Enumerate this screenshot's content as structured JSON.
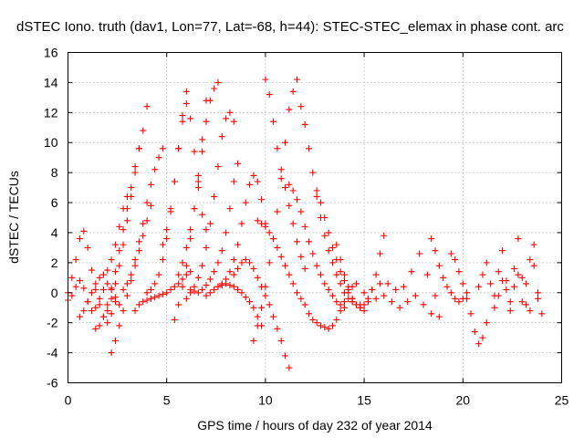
{
  "chart_data": {
    "type": "scatter",
    "title": "dSTEC Iono. truth (dav1, Lon=77, Lat=-68, h=44): STEC-STEC_elemax in phase cont. arc",
    "xlabel": "GPS time / hours of day 232 of year 2014",
    "ylabel": "dSTEC  / TECUs",
    "xlim": [
      0,
      25
    ],
    "ylim": [
      -6,
      16
    ],
    "xticks": [
      0,
      5,
      10,
      15,
      20,
      25
    ],
    "yticks": [
      -6,
      -4,
      -2,
      0,
      2,
      4,
      6,
      8,
      10,
      12,
      14,
      16
    ],
    "grid": true,
    "marker": "plus",
    "color": "#ff0000",
    "series": [
      {
        "x": [
          0.0,
          0.2,
          0.4,
          0.6,
          0.8,
          1.0,
          1.2,
          1.4,
          1.6,
          1.8,
          2.0,
          2.2,
          2.4
        ],
        "y": [
          0.0,
          1.0,
          2.2,
          3.6,
          4.1,
          3.0,
          1.5,
          0.2,
          -0.8,
          -1.6,
          -2.0,
          -1.4,
          -0.6
        ]
      },
      {
        "x": [
          0.0,
          0.2,
          0.4,
          0.6,
          0.8,
          1.0,
          1.2,
          1.4,
          1.6,
          1.8,
          2.0,
          2.2,
          2.4,
          2.6
        ],
        "y": [
          -0.5,
          -0.2,
          0.4,
          0.8,
          0.3,
          -0.6,
          -1.2,
          -1.0,
          -0.4,
          0.2,
          0.6,
          0.3,
          -0.3,
          -0.8
        ]
      },
      {
        "x": [
          0.6,
          0.8,
          1.0,
          1.2,
          1.4,
          1.6,
          1.8,
          2.0,
          2.2,
          2.4,
          2.6,
          2.8,
          3.0
        ],
        "y": [
          -1.6,
          -1.2,
          -0.6,
          0.0,
          0.6,
          1.0,
          1.2,
          1.5,
          2.2,
          3.2,
          4.4,
          5.6,
          6.4
        ]
      },
      {
        "x": [
          1.4,
          1.6,
          1.8,
          2.0,
          2.2,
          2.4,
          2.6,
          2.8,
          3.0,
          3.2,
          3.4,
          3.6
        ],
        "y": [
          -2.4,
          -2.2,
          -1.6,
          -0.8,
          0.2,
          1.4,
          2.8,
          4.2,
          5.6,
          7.0,
          8.4,
          9.6
        ]
      },
      {
        "x": [
          2.0,
          2.2,
          2.4,
          2.6,
          2.8,
          3.0,
          3.2,
          3.4,
          3.6,
          3.8,
          4.0
        ],
        "y": [
          -1.2,
          -0.4,
          0.6,
          1.8,
          3.2,
          4.8,
          6.4,
          8.0,
          9.6,
          10.8,
          12.4
        ]
      },
      {
        "x": [
          2.2,
          2.4,
          2.6,
          2.8,
          3.0,
          3.2,
          3.4,
          3.6,
          3.8,
          4.0,
          4.2
        ],
        "y": [
          -4.0,
          -3.2,
          -2.2,
          -1.2,
          -0.2,
          0.8,
          1.8,
          2.8,
          3.8,
          4.8,
          5.8
        ]
      },
      {
        "x": [
          2.8,
          3.0,
          3.2,
          3.4,
          3.6,
          3.8,
          4.0,
          4.2,
          4.4,
          4.6,
          4.8
        ],
        "y": [
          0.2,
          0.6,
          1.2,
          2.2,
          3.4,
          4.6,
          6.0,
          7.2,
          8.2,
          9.0,
          9.6
        ]
      },
      {
        "x": [
          3.4,
          3.6,
          3.8,
          4.0,
          4.2,
          4.4,
          4.6,
          4.8,
          5.0,
          5.2,
          5.4,
          5.6,
          5.8,
          6.0,
          6.2
        ],
        "y": [
          -1.2,
          -0.8,
          -0.6,
          -0.5,
          -0.4,
          -0.3,
          -0.2,
          -0.1,
          0.0,
          0.2,
          0.4,
          0.6,
          0.9,
          1.2,
          1.4
        ]
      },
      {
        "x": [
          4.0,
          4.2,
          4.4,
          4.6,
          4.8,
          5.0,
          5.2,
          5.4,
          5.6,
          5.8,
          6.0
        ],
        "y": [
          0.0,
          0.2,
          0.6,
          1.2,
          2.2,
          3.6,
          5.4,
          7.4,
          9.6,
          11.8,
          13.4
        ]
      },
      {
        "x": [
          4.8,
          5.0,
          5.2,
          5.4,
          5.6,
          5.8,
          6.0,
          6.2,
          6.4,
          6.6,
          6.8,
          7.0
        ],
        "y": [
          3.2,
          4.2,
          5.6,
          7.4,
          9.6,
          11.4,
          12.6,
          11.6,
          9.4,
          7.0,
          5.2,
          4.2
        ]
      },
      {
        "x": [
          5.4,
          5.6,
          5.8,
          6.0,
          6.2,
          6.4,
          6.6,
          6.8,
          7.0
        ],
        "y": [
          -1.8,
          -0.8,
          0.4,
          1.8,
          3.6,
          5.6,
          7.8,
          10.2,
          12.8
        ]
      },
      {
        "x": [
          5.6,
          5.8,
          6.0,
          6.2,
          6.4,
          6.6,
          6.8,
          7.0,
          7.2,
          7.4,
          7.6
        ],
        "y": [
          1.2,
          2.0,
          3.0,
          4.2,
          5.6,
          7.4,
          9.4,
          11.4,
          12.8,
          13.6,
          14.0
        ]
      },
      {
        "x": [
          6.0,
          6.2,
          6.4,
          6.6,
          6.8,
          7.0,
          7.2,
          7.4,
          7.6,
          7.8,
          8.0,
          8.2,
          8.4
        ],
        "y": [
          -0.4,
          0.0,
          0.4,
          1.0,
          1.8,
          3.0,
          4.6,
          6.4,
          8.4,
          10.4,
          11.6,
          12.0,
          11.4
        ]
      },
      {
        "x": [
          6.2,
          6.4,
          6.6,
          6.8,
          7.0,
          7.2,
          7.4,
          7.6,
          7.8,
          8.0,
          8.2,
          8.4,
          8.6
        ],
        "y": [
          0.2,
          0.1,
          0.0,
          0.2,
          0.5,
          0.9,
          1.4,
          2.0,
          2.8,
          4.0,
          5.6,
          7.4,
          8.6
        ]
      },
      {
        "x": [
          7.6,
          7.8,
          8.0,
          8.2,
          8.4,
          8.6,
          8.8,
          9.0,
          9.2,
          9.4,
          9.6,
          9.8,
          10.0
        ],
        "y": [
          0.4,
          0.6,
          0.9,
          1.4,
          2.2,
          3.2,
          4.6,
          6.0,
          7.2,
          7.8,
          7.4,
          6.2,
          4.6
        ]
      },
      {
        "x": [
          8.4,
          8.6,
          8.8,
          9.0,
          9.2,
          9.4,
          9.6,
          9.8,
          10.0,
          10.2,
          10.4,
          10.6,
          10.8,
          11.0,
          11.2
        ],
        "y": [
          1.2,
          1.6,
          2.0,
          2.2,
          2.0,
          1.6,
          1.0,
          0.4,
          -0.2,
          -0.8,
          -1.6,
          -2.4,
          -3.2,
          -4.2,
          -5.0
        ]
      },
      {
        "x": [
          7.0,
          7.2,
          7.4,
          7.6,
          7.8,
          8.0,
          8.2,
          8.4,
          8.6,
          8.8,
          9.0,
          9.2,
          9.4,
          9.6,
          9.8
        ],
        "y": [
          -0.2,
          0.0,
          0.2,
          0.4,
          0.5,
          0.6,
          0.5,
          0.4,
          0.2,
          0.0,
          -0.3,
          -0.6,
          -1.0,
          -1.6,
          -2.2
        ]
      },
      {
        "x": [
          9.4,
          9.6,
          9.8,
          10.0,
          10.2,
          10.4,
          10.6,
          10.8,
          11.0,
          11.2,
          11.4,
          11.6
        ],
        "y": [
          -3.2,
          -2.2,
          -1.0,
          0.4,
          2.0,
          3.6,
          5.4,
          7.6,
          10.0,
          12.2,
          13.4,
          14.2
        ]
      },
      {
        "x": [
          10.0,
          10.2,
          10.4,
          10.6,
          10.8,
          11.0,
          11.2,
          11.4,
          11.6,
          11.8,
          12.0
        ],
        "y": [
          14.2,
          13.2,
          11.4,
          9.6,
          8.2,
          7.0,
          5.8,
          4.6,
          3.4,
          2.4,
          1.6
        ]
      },
      {
        "x": [
          9.6,
          9.8,
          10.0,
          10.2,
          10.4,
          10.6,
          10.8,
          11.0,
          11.2,
          11.4,
          11.6,
          11.8
        ],
        "y": [
          4.8,
          4.6,
          4.4,
          4.0,
          3.6,
          3.0,
          2.4,
          1.8,
          1.2,
          0.6,
          0.0,
          -0.4
        ]
      },
      {
        "x": [
          11.2,
          11.4,
          11.6,
          11.8,
          12.0,
          12.2,
          12.4,
          12.6,
          12.8,
          13.0,
          13.2,
          13.4,
          13.6,
          13.8,
          14.0
        ],
        "y": [
          7.2,
          6.8,
          6.2,
          5.4,
          4.4,
          3.4,
          2.6,
          1.8,
          1.2,
          0.6,
          0.2,
          -0.2,
          -0.6,
          -0.8,
          -1.0
        ]
      },
      {
        "x": [
          11.8,
          12.0,
          12.2,
          12.4,
          12.6,
          12.8,
          13.0,
          13.2,
          13.4,
          13.6,
          13.8,
          14.0,
          14.2,
          14.4
        ],
        "y": [
          12.4,
          11.2,
          9.6,
          8.0,
          6.4,
          5.0,
          3.8,
          2.8,
          2.0,
          1.2,
          0.6,
          0.0,
          -0.4,
          -0.6
        ]
      },
      {
        "x": [
          12.6,
          12.8,
          13.0,
          13.2,
          13.4,
          13.6,
          13.8,
          14.0,
          14.2,
          14.4,
          14.6,
          14.8,
          15.0
        ],
        "y": [
          6.8,
          6.0,
          5.0,
          4.0,
          3.0,
          2.2,
          1.4,
          0.8,
          0.2,
          -0.4,
          -0.8,
          -1.0,
          -1.2
        ]
      },
      {
        "x": [
          12.0,
          12.2,
          12.4,
          12.6,
          12.8,
          13.0,
          13.2,
          13.4,
          13.6,
          13.8,
          14.0,
          14.2,
          14.4,
          14.6
        ],
        "y": [
          -0.8,
          -1.4,
          -1.8,
          -2.0,
          -2.2,
          -2.3,
          -2.4,
          -2.2,
          -1.8,
          -1.2,
          -0.6,
          0.0,
          0.4,
          0.6
        ]
      },
      {
        "x": [
          13.6,
          13.8,
          14.0,
          14.2,
          14.4,
          14.6,
          14.8,
          15.0,
          15.2,
          15.4,
          15.6,
          15.8,
          16.0
        ],
        "y": [
          3.2,
          2.2,
          1.2,
          0.4,
          -0.4,
          -0.8,
          -1.0,
          -0.8,
          -0.4,
          0.2,
          1.2,
          2.6,
          3.8
        ]
      },
      {
        "x": [
          15.0,
          15.4,
          15.8,
          16.2,
          16.6,
          17.0,
          17.4,
          17.8,
          18.2,
          18.6
        ],
        "y": [
          0.0,
          0.2,
          0.6,
          0.6,
          0.2,
          0.4,
          1.4,
          2.6,
          1.2,
          -0.2
        ]
      },
      {
        "x": [
          14.4,
          14.8,
          15.2,
          15.6,
          16.0,
          16.4,
          16.8,
          17.2,
          17.6,
          18.0,
          18.4,
          18.8
        ],
        "y": [
          -0.6,
          -0.8,
          -0.6,
          -0.4,
          -0.2,
          -0.6,
          -1.0,
          -0.6,
          -0.2,
          -0.8,
          -1.4,
          -1.6
        ]
      },
      {
        "x": [
          18.4,
          18.6,
          18.8,
          19.0,
          19.2,
          19.4,
          19.6,
          19.8,
          20.0,
          20.2
        ],
        "y": [
          3.6,
          2.8,
          1.8,
          1.0,
          0.4,
          0.0,
          -0.4,
          -0.6,
          -0.4,
          0.0
        ]
      },
      {
        "x": [
          19.4,
          19.6,
          19.8,
          20.0,
          20.2,
          20.4,
          20.6,
          20.8,
          21.0,
          21.2
        ],
        "y": [
          2.6,
          2.2,
          1.4,
          0.6,
          -0.4,
          -1.4,
          -2.6,
          -3.4,
          -3.0,
          -2.0
        ]
      },
      {
        "x": [
          20.8,
          21.0,
          21.2,
          21.4,
          21.6,
          21.8,
          22.0,
          22.2,
          22.4,
          22.6,
          22.8,
          23.0,
          23.2,
          23.4,
          23.6,
          23.8
        ],
        "y": [
          0.4,
          1.2,
          2.0,
          0.6,
          -0.2,
          1.4,
          2.8,
          0.8,
          -0.6,
          1.6,
          3.6,
          1.0,
          -0.8,
          2.2,
          3.2,
          0.0
        ]
      },
      {
        "x": [
          21.6,
          21.8,
          22.0,
          22.2,
          22.4,
          22.6,
          22.8,
          23.0,
          23.2,
          23.4,
          23.6,
          23.8,
          24.0
        ],
        "y": [
          -1.0,
          -0.2,
          0.8,
          0.2,
          -1.2,
          0.4,
          1.2,
          -0.6,
          0.6,
          -1.2,
          1.8,
          -0.4,
          -1.4
        ]
      }
    ]
  }
}
